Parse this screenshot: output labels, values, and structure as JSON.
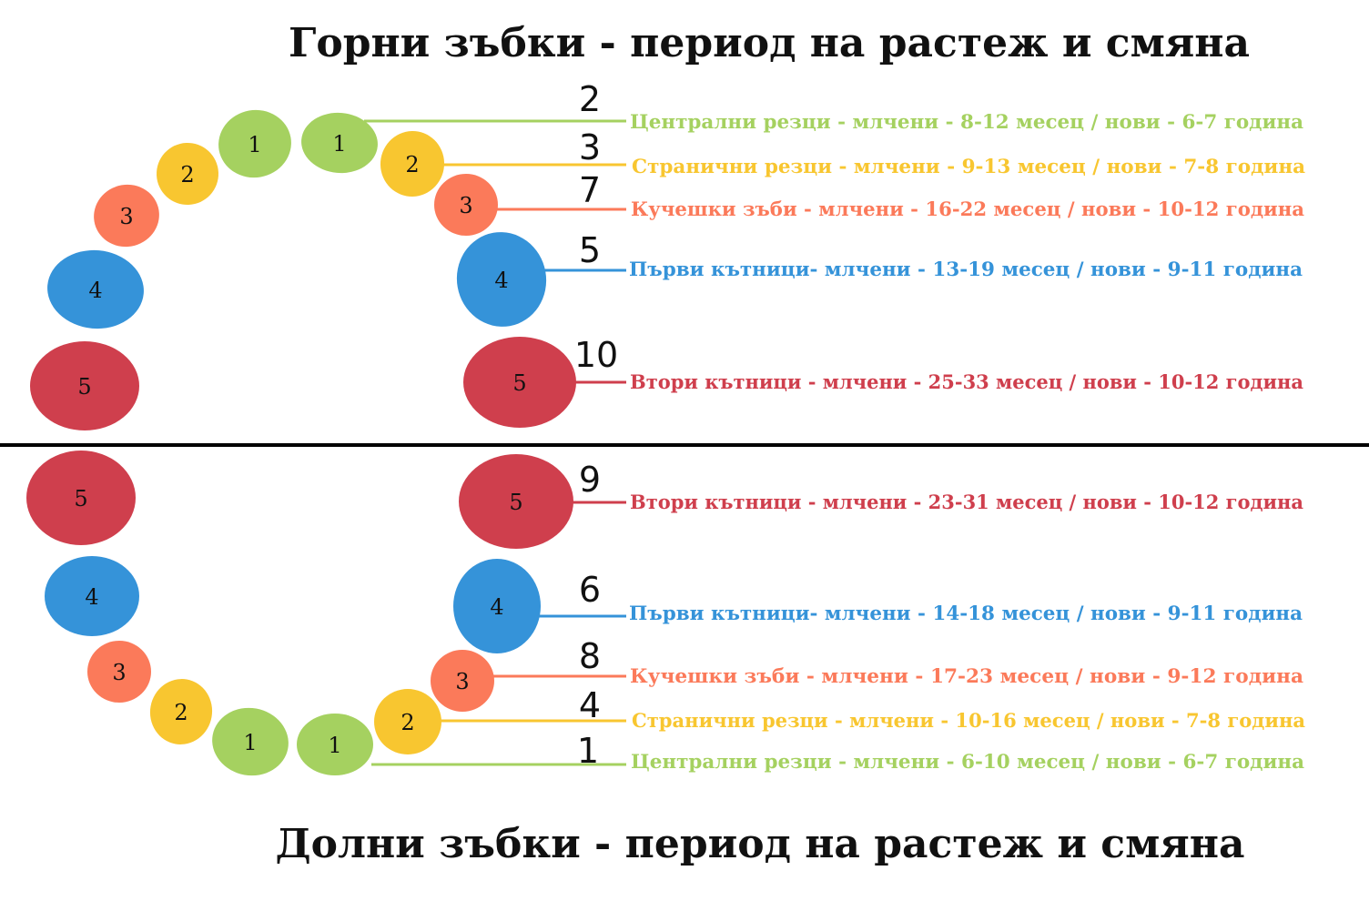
{
  "titles": {
    "upper": "Горни зъбки - период на растеж и смяна",
    "lower": "Долни зъбки - период на растеж и смяна"
  },
  "colors": {
    "incisor_central": "#a5d160",
    "incisor_lateral": "#f8c630",
    "canine": "#fb7a5a",
    "molar_first": "#3593d9",
    "molar_second": "#cf3f4d",
    "divider": "#000000"
  },
  "upper": {
    "teeth": [
      {
        "label": "1",
        "type": "incisor_central"
      },
      {
        "label": "2",
        "type": "incisor_lateral"
      },
      {
        "label": "3",
        "type": "canine"
      },
      {
        "label": "4",
        "type": "molar_first"
      },
      {
        "label": "5",
        "type": "molar_second"
      },
      {
        "label": "1",
        "type": "incisor_central"
      },
      {
        "label": "2",
        "type": "incisor_lateral"
      },
      {
        "label": "3",
        "type": "canine"
      },
      {
        "label": "4",
        "type": "molar_first"
      },
      {
        "label": "5",
        "type": "molar_second"
      }
    ],
    "legend": [
      {
        "order": "2",
        "text": "Централни резци - млчени - 8-12 месец / нови - 6-7 година",
        "type": "incisor_central"
      },
      {
        "order": "3",
        "text": "Странични резци - млчени - 9-13 месец / нови - 7-8 година",
        "type": "incisor_lateral"
      },
      {
        "order": "7",
        "text": "Кучешки зъби - млчени -  16-22 месец / нови - 10-12 година",
        "type": "canine"
      },
      {
        "order": "5",
        "text": "Първи кътници- млчени -  13-19 месец / нови - 9-11 година",
        "type": "molar_first"
      },
      {
        "order": "10",
        "text": "Втори кътници - млчени -  25-33 месец / нови - 10-12 година",
        "type": "molar_second"
      }
    ]
  },
  "lower": {
    "teeth": [
      {
        "label": "5",
        "type": "molar_second"
      },
      {
        "label": "4",
        "type": "molar_first"
      },
      {
        "label": "3",
        "type": "canine"
      },
      {
        "label": "2",
        "type": "incisor_lateral"
      },
      {
        "label": "1",
        "type": "incisor_central"
      },
      {
        "label": "5",
        "type": "molar_second"
      },
      {
        "label": "4",
        "type": "molar_first"
      },
      {
        "label": "3",
        "type": "canine"
      },
      {
        "label": "2",
        "type": "incisor_lateral"
      },
      {
        "label": "1",
        "type": "incisor_central"
      }
    ],
    "legend": [
      {
        "order": "9",
        "text": "Втори кътници - млчени -  23-31 месец / нови - 10-12 година",
        "type": "molar_second"
      },
      {
        "order": "6",
        "text": "Първи кътници- млчени -  14-18 месец / нови - 9-11 година",
        "type": "molar_first"
      },
      {
        "order": "8",
        "text": "Кучешки зъби - млчени -  17-23 месец / нови - 9-12 година",
        "type": "canine"
      },
      {
        "order": "4",
        "text": "Странични резци - млчени - 10-16 месец / нови - 7-8 година",
        "type": "incisor_lateral"
      },
      {
        "order": "1",
        "text": "Централни резци - млчени - 6-10 месец / нови - 6-7 година",
        "type": "incisor_central"
      }
    ]
  }
}
